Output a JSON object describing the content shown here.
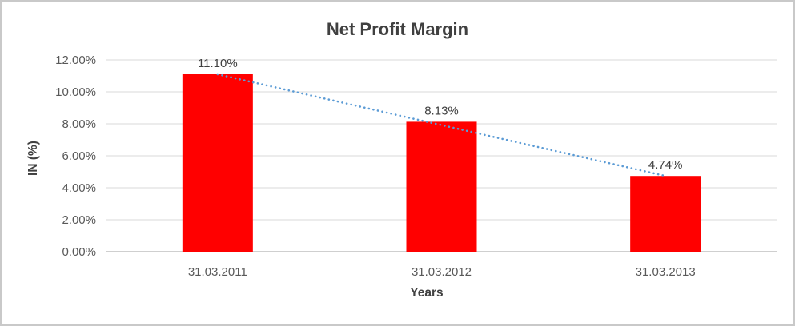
{
  "chart_data": {
    "type": "bar",
    "title": "Net Profit Margin",
    "xlabel": "Years",
    "ylabel": "IN (%)",
    "categories": [
      "31.03.2011",
      "31.03.2012",
      "31.03.2013"
    ],
    "values": [
      11.1,
      8.13,
      4.74
    ],
    "data_labels": [
      "11.10%",
      "8.13%",
      "4.74%"
    ],
    "ylim": [
      0,
      12
    ],
    "ytick_step": 2,
    "ytick_labels": [
      "0.00%",
      "2.00%",
      "4.00%",
      "6.00%",
      "8.00%",
      "10.00%",
      "12.00%"
    ],
    "grid": true,
    "legend": false,
    "bar_color": "#FF0000",
    "trendline": {
      "type": "linear",
      "style": "dotted",
      "color": "#5B9BD5",
      "from": [
        0,
        11.1
      ],
      "to": [
        2,
        4.74
      ]
    },
    "colors": {
      "title": "#404040",
      "axis_labels": "#595959",
      "gridline": "#D9D9D9",
      "axis_line": "#BFBFBF"
    }
  }
}
